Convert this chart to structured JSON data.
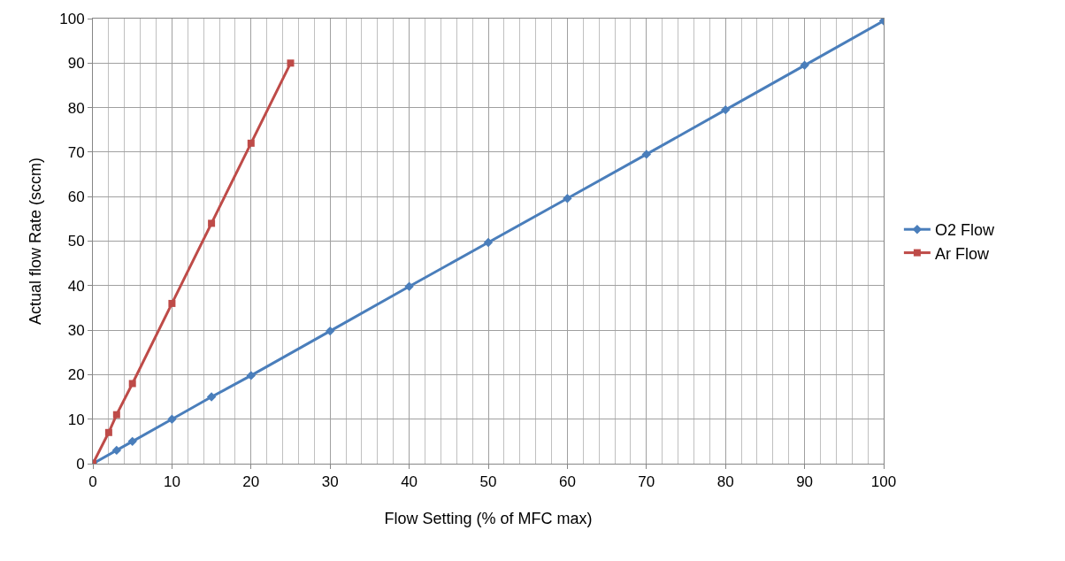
{
  "chart_data": {
    "type": "line",
    "xlabel": "Flow Setting (% of MFC max)",
    "ylabel": "Actual flow Rate (sccm)",
    "series": [
      {
        "name": "O2 Flow",
        "color": "#4a7ebb",
        "marker": "diamond",
        "x": [
          0,
          3,
          5,
          10,
          15,
          20,
          30,
          40,
          50,
          60,
          70,
          80,
          90,
          100
        ],
        "values": [
          0,
          3,
          5,
          10,
          15,
          19.8,
          29.8,
          39.8,
          49.7,
          59.6,
          69.5,
          79.5,
          89.5,
          99.5
        ]
      },
      {
        "name": "Ar Flow",
        "color": "#be4b48",
        "marker": "square",
        "x": [
          0,
          2,
          3,
          5,
          10,
          15,
          20,
          25
        ],
        "values": [
          0,
          7,
          11,
          18,
          36,
          54,
          72,
          90
        ]
      }
    ],
    "xlim": [
      0,
      100
    ],
    "xticks": [
      0,
      10,
      20,
      30,
      40,
      50,
      60,
      70,
      80,
      90,
      100
    ],
    "ylim": [
      0,
      100
    ],
    "yticks": [
      0,
      10,
      20,
      30,
      40,
      50,
      60,
      70,
      80,
      90,
      100
    ],
    "grid": true,
    "legend": "right",
    "line_style": "solid"
  }
}
